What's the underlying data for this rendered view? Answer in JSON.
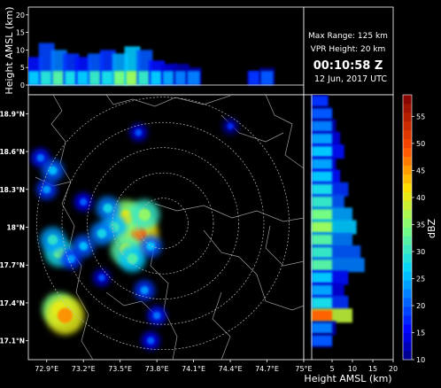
{
  "chart_data": [
    {
      "type": "heatmap",
      "panel": "ppi",
      "x_ticks": [
        "72.9°E",
        "73.2°E",
        "73.5°E",
        "73.8°E",
        "74.1°E",
        "74.4°E",
        "74.7°E",
        "75°E"
      ],
      "y_ticks": [
        "18.9°N",
        "18.6°N",
        "18.3°N",
        "18°N",
        "17.7°N",
        "17.4°N",
        "17.1°N"
      ],
      "xlim": [
        72.75,
        75.0
      ],
      "ylim": [
        16.95,
        19.05
      ],
      "range_rings_km": [
        25,
        50,
        75,
        100,
        125
      ],
      "radar_center": [
        73.85,
        18.03
      ],
      "echo_cells": [
        {
          "lon": 73.6,
          "lat": 18.02,
          "dbz": 38
        },
        {
          "lon": 73.65,
          "lat": 17.95,
          "dbz": 42
        },
        {
          "lon": 73.55,
          "lat": 18.08,
          "dbz": 35
        },
        {
          "lon": 73.7,
          "lat": 18.1,
          "dbz": 30
        },
        {
          "lon": 73.45,
          "lat": 18.0,
          "dbz": 25
        },
        {
          "lon": 73.35,
          "lat": 17.95,
          "dbz": 22
        },
        {
          "lon": 73.2,
          "lat": 17.85,
          "dbz": 20
        },
        {
          "lon": 73.0,
          "lat": 17.8,
          "dbz": 28
        },
        {
          "lon": 72.95,
          "lat": 17.9,
          "dbz": 24
        },
        {
          "lon": 73.1,
          "lat": 17.75,
          "dbz": 18
        },
        {
          "lon": 73.55,
          "lat": 17.82,
          "dbz": 32
        },
        {
          "lon": 73.6,
          "lat": 17.75,
          "dbz": 26
        },
        {
          "lon": 73.75,
          "lat": 17.85,
          "dbz": 20
        },
        {
          "lon": 72.9,
          "lat": 18.3,
          "dbz": 18
        },
        {
          "lon": 72.85,
          "lat": 18.55,
          "dbz": 16
        },
        {
          "lon": 72.95,
          "lat": 18.45,
          "dbz": 20
        },
        {
          "lon": 73.2,
          "lat": 18.2,
          "dbz": 15
        },
        {
          "lon": 73.0,
          "lat": 17.35,
          "dbz": 34
        },
        {
          "lon": 73.05,
          "lat": 17.3,
          "dbz": 40
        },
        {
          "lon": 73.7,
          "lat": 17.5,
          "dbz": 18
        },
        {
          "lon": 73.8,
          "lat": 17.3,
          "dbz": 16
        },
        {
          "lon": 73.75,
          "lat": 17.1,
          "dbz": 15
        },
        {
          "lon": 73.65,
          "lat": 18.75,
          "dbz": 14
        },
        {
          "lon": 74.4,
          "lat": 18.8,
          "dbz": 12
        },
        {
          "lon": 73.35,
          "lat": 17.6,
          "dbz": 14
        },
        {
          "lon": 73.4,
          "lat": 18.15,
          "dbz": 22
        }
      ]
    },
    {
      "type": "area",
      "panel": "vertical-profile-top",
      "ylabel": "Height AMSL (km)",
      "y_ticks": [
        "0",
        "5",
        "10",
        "15",
        "20"
      ],
      "ylim": [
        0,
        20
      ],
      "x_ticks": [
        "72.9°E",
        "73.2°E",
        "73.5°E",
        "73.8°E",
        "74.1°E",
        "74.4°E",
        "74.7°E",
        "75°E"
      ],
      "xlim": [
        72.75,
        75.0
      ],
      "profile": [
        {
          "x": 72.8,
          "top": 8,
          "dbz": 22
        },
        {
          "x": 72.9,
          "top": 12,
          "dbz": 25
        },
        {
          "x": 73.0,
          "top": 10,
          "dbz": 28
        },
        {
          "x": 73.1,
          "top": 9,
          "dbz": 24
        },
        {
          "x": 73.2,
          "top": 8,
          "dbz": 22
        },
        {
          "x": 73.3,
          "top": 9,
          "dbz": 26
        },
        {
          "x": 73.4,
          "top": 10,
          "dbz": 24
        },
        {
          "x": 73.5,
          "top": 9,
          "dbz": 30
        },
        {
          "x": 73.6,
          "top": 11,
          "dbz": 32
        },
        {
          "x": 73.7,
          "top": 10,
          "dbz": 26
        },
        {
          "x": 73.8,
          "top": 7,
          "dbz": 22
        },
        {
          "x": 73.9,
          "top": 6,
          "dbz": 20
        },
        {
          "x": 74.0,
          "top": 6,
          "dbz": 18
        },
        {
          "x": 74.1,
          "top": 5,
          "dbz": 18
        },
        {
          "x": 74.6,
          "top": 4,
          "dbz": 14
        },
        {
          "x": 74.7,
          "top": 5,
          "dbz": 16
        }
      ]
    },
    {
      "type": "area",
      "panel": "vertical-profile-right",
      "xlabel": "Height AMSL (km)",
      "x_ticks": [
        "5",
        "10",
        "15",
        "20"
      ],
      "xlim": [
        0,
        20
      ],
      "y_ticks": [
        "18.9°N",
        "18.6°N",
        "18.3°N",
        "18°N",
        "17.7°N",
        "17.4°N",
        "17.1°N"
      ],
      "ylim": [
        16.95,
        19.05
      ],
      "profile": [
        {
          "y": 19.0,
          "top": 4,
          "dbz": 14
        },
        {
          "y": 18.9,
          "top": 5,
          "dbz": 16
        },
        {
          "y": 18.8,
          "top": 6,
          "dbz": 18
        },
        {
          "y": 18.7,
          "top": 7,
          "dbz": 20
        },
        {
          "y": 18.6,
          "top": 8,
          "dbz": 22
        },
        {
          "y": 18.5,
          "top": 6,
          "dbz": 20
        },
        {
          "y": 18.4,
          "top": 7,
          "dbz": 22
        },
        {
          "y": 18.3,
          "top": 9,
          "dbz": 24
        },
        {
          "y": 18.2,
          "top": 8,
          "dbz": 26
        },
        {
          "y": 18.1,
          "top": 10,
          "dbz": 30
        },
        {
          "y": 18.0,
          "top": 11,
          "dbz": 32
        },
        {
          "y": 17.9,
          "top": 10,
          "dbz": 28
        },
        {
          "y": 17.8,
          "top": 12,
          "dbz": 26
        },
        {
          "y": 17.7,
          "top": 13,
          "dbz": 28
        },
        {
          "y": 17.6,
          "top": 9,
          "dbz": 22
        },
        {
          "y": 17.5,
          "top": 8,
          "dbz": 20
        },
        {
          "y": 17.4,
          "top": 9,
          "dbz": 24
        },
        {
          "y": 17.3,
          "top": 10,
          "dbz": 44
        },
        {
          "y": 17.2,
          "top": 6,
          "dbz": 18
        },
        {
          "y": 17.1,
          "top": 5,
          "dbz": 16
        }
      ]
    }
  ],
  "info": {
    "max_range": "Max Range: 125 km",
    "vpr_height": "VPR Height: 20 km",
    "time": "00:10:58 Z",
    "date": "12 Jun, 2017 UTC"
  },
  "colorbar": {
    "label": "dBZ",
    "ticks": [
      "10",
      "15",
      "20",
      "25",
      "30",
      "35",
      "40",
      "45",
      "50",
      "55"
    ],
    "range": [
      10,
      59
    ]
  }
}
